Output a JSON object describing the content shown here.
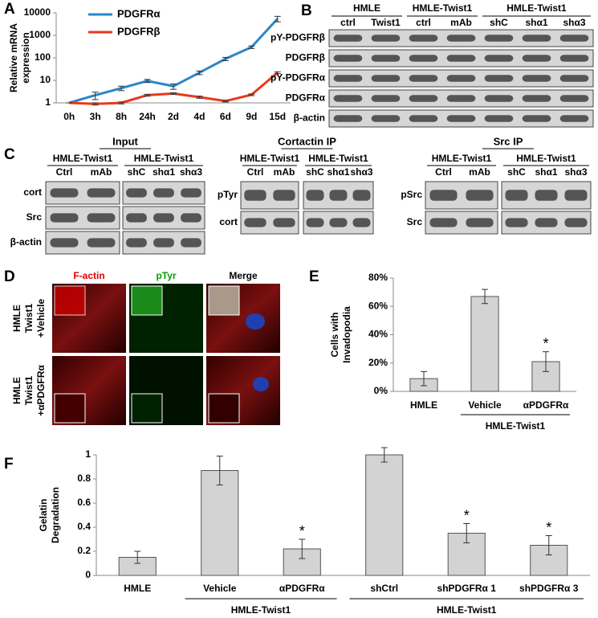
{
  "chart_data": [
    {
      "type": "line",
      "label": "A",
      "log_scale": true,
      "y_label": [
        "Relative mRNA",
        "expression"
      ],
      "categories": [
        "0h",
        "3h",
        "8h",
        "24h",
        "2d",
        "4d",
        "6d",
        "9d",
        "15d"
      ],
      "series": [
        {
          "name": "PDGFRα",
          "color": "#2a87c8",
          "values": [
            1,
            2.2,
            4.5,
            9.5,
            5.5,
            22,
            90,
            300,
            5500
          ],
          "errors": [
            0,
            0.8,
            1,
            1.5,
            1.5,
            4,
            15,
            40,
            1500
          ]
        },
        {
          "name": "PDGFRβ",
          "color": "#e8391c",
          "values": [
            1,
            0.9,
            1,
            2.2,
            2.6,
            1.8,
            1.2,
            2.3,
            22
          ],
          "errors": [
            0,
            0.1,
            0.1,
            0.2,
            0.2,
            0.2,
            0.1,
            0.2,
            2
          ]
        }
      ],
      "ylim": [
        1,
        10000
      ],
      "yticks": [
        1,
        10,
        100,
        1000,
        10000
      ]
    },
    {
      "type": "bar",
      "label": "E",
      "y_label": [
        "Cells with",
        "Invadopodia"
      ],
      "categories": [
        "HMLE",
        "Vehicle",
        "αPDGFRα"
      ],
      "category_groups": [
        null,
        "HMLE-Twist1",
        "HMLE-Twist1"
      ],
      "values": [
        9,
        67,
        21
      ],
      "errors": [
        5,
        5,
        7
      ],
      "annotations": [
        null,
        null,
        "*"
      ],
      "color": "#d3d3d3",
      "ylim": [
        0,
        80
      ],
      "yticks": [
        {
          "value": 0,
          "label": "0%"
        },
        {
          "value": 20,
          "label": "20%"
        },
        {
          "value": 40,
          "label": "40%"
        },
        {
          "value": 60,
          "label": "60%"
        },
        {
          "value": 80,
          "label": "80%"
        }
      ]
    },
    {
      "type": "bar",
      "label": "F",
      "y_label": [
        "Gelatin",
        "Degradation"
      ],
      "categories": [
        "HMLE",
        "Vehicle",
        "αPDGFRα",
        "shCtrl",
        "shPDGFRα 1",
        "shPDGFRα 3"
      ],
      "category_groups": [
        null,
        "HMLE-Twist1",
        "HMLE-Twist1",
        "HMLE-Twist1 ",
        "HMLE-Twist1 ",
        "HMLE-Twist1 "
      ],
      "values": [
        0.15,
        0.87,
        0.22,
        1.0,
        0.35,
        0.25
      ],
      "errors": [
        0.05,
        0.12,
        0.08,
        0.06,
        0.08,
        0.08
      ],
      "annotations": [
        null,
        null,
        "*",
        null,
        "*",
        "*"
      ],
      "color": "#d3d3d3",
      "ylim": [
        0,
        1
      ],
      "yticks": [
        0,
        0.2,
        0.4,
        0.6,
        0.8,
        1
      ]
    }
  ],
  "blot_b": {
    "label": "B",
    "groups": [
      {
        "label": "HMLE",
        "lanes": [
          "ctrl",
          "Twist1"
        ]
      },
      {
        "label": "HMLE-Twist1",
        "lanes": [
          "ctrl",
          "mAb"
        ]
      },
      {
        "label": "HMLE-Twist1",
        "lanes": [
          "shC",
          "shα1",
          "shα3"
        ]
      }
    ],
    "rows": [
      "pY-PDGFRβ",
      "PDGFRβ",
      "pY-PDGFRα",
      "PDGFRα",
      "β-actin"
    ]
  },
  "blot_c": {
    "label": "C",
    "panels": [
      {
        "title": "Input",
        "blots": [
          {
            "group": "HMLE-Twist1",
            "lanes": [
              "Ctrl",
              "mAb"
            ]
          },
          {
            "group": "HMLE-Twist1",
            "lanes": [
              "shC",
              "shα1",
              "shα3"
            ]
          }
        ],
        "rows": [
          "cort",
          "Src",
          "β-actin"
        ]
      },
      {
        "title": "Cortactin IP",
        "blots": [
          {
            "group": "HMLE-Twist1",
            "lanes": [
              "Ctrl",
              "mAb"
            ]
          },
          {
            "group": "HMLE-Twist1",
            "lanes": [
              "shC",
              "shα1",
              "shα3"
            ]
          }
        ],
        "rows": [
          "pTyr",
          "cort"
        ]
      },
      {
        "title": "Src IP",
        "blots": [
          {
            "group": "HMLE-Twist1",
            "lanes": [
              "Ctrl",
              "mAb"
            ]
          },
          {
            "group": "HMLE-Twist1",
            "lanes": [
              "shC",
              "shα1",
              "shα3"
            ]
          }
        ],
        "rows": [
          "pSrc",
          "Src"
        ]
      }
    ]
  },
  "micro_d": {
    "label": "D",
    "columns": [
      "F-actin",
      "pTyr",
      "Merge"
    ],
    "rows": [
      [
        "HMLE",
        "Twist1",
        "+Vehicle"
      ],
      [
        "HMLE",
        "Twist1",
        "+αPDGFRα"
      ]
    ]
  }
}
